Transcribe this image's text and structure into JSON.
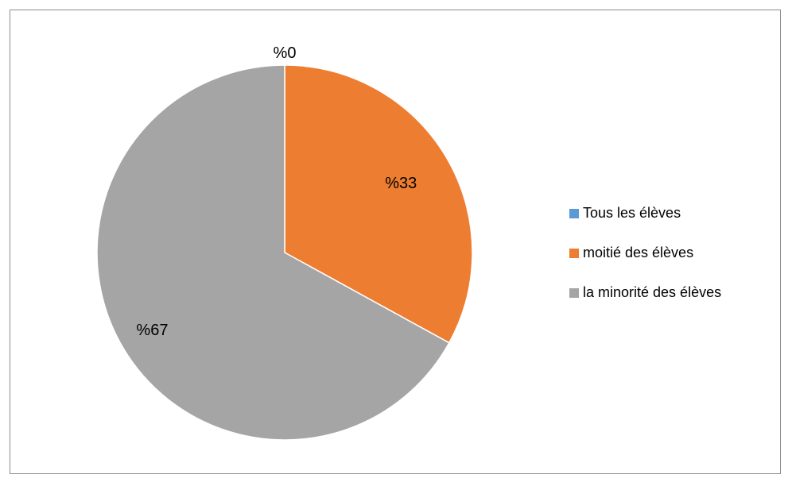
{
  "chart_data": {
    "type": "pie",
    "title": "",
    "categories": [
      "Tous les élèves",
      "moitié des élèves",
      "la minorité des élèves"
    ],
    "values": [
      0,
      33,
      67
    ],
    "data_labels": [
      "%0",
      "%33",
      "%67"
    ],
    "colors": [
      "#5B9BD5",
      "#ED7D31",
      "#A5A5A5"
    ],
    "legend_position": "right"
  },
  "legend": {
    "items": [
      {
        "label": "Tous les élèves",
        "color": "#5B9BD5"
      },
      {
        "label": "moitié des élèves",
        "color": "#ED7D31"
      },
      {
        "label": "la minorité des élèves",
        "color": "#A5A5A5"
      }
    ]
  }
}
